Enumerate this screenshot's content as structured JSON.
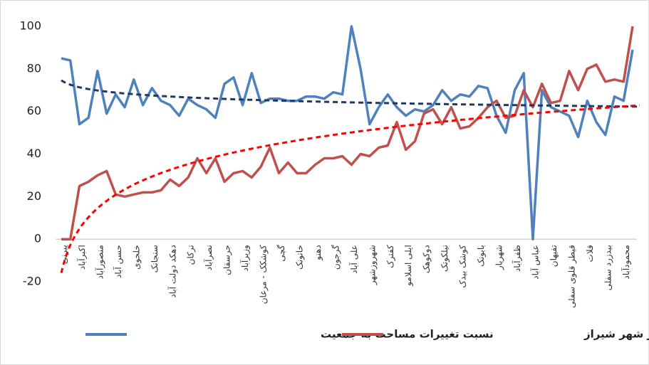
{
  "chart_data": {
    "type": "line",
    "categories": [
      "پیرنی",
      null,
      "اکبرآباد",
      null,
      "منصورآباد",
      null,
      "حسن آباد",
      null,
      "خلجوی",
      null,
      "سنجانک",
      null,
      "دهکد دولت آباد",
      null,
      "ترکان",
      null,
      "نصرآباد",
      null,
      "جرسقان",
      null,
      "وزیرآباد",
      null,
      "کوشکک - مرغان",
      null,
      "گچی",
      null,
      "خاتونک",
      null,
      "دهنو",
      null,
      "گرجون",
      null,
      "علی آباد",
      null,
      "شهروزشهر",
      null,
      "کفترک",
      null,
      "ایلی اسلامو",
      null,
      "دوکوهک",
      null,
      "نیلکوتک",
      null,
      "کوشک بیدک",
      null,
      "بابونک",
      null,
      "شهریار",
      null,
      "ظفرآباد",
      null,
      "عباس آباد",
      null,
      "تفیهان",
      null,
      "قیطر قلوی سفلی",
      null,
      "قلات",
      null,
      "بیدزرد سفلی",
      null,
      "محمودآباد",
      null
    ],
    "series": [
      {
        "name": "نسبت تغییرات مساحت به جمعیت",
        "color": "#4f81bd",
        "trend_color": "#1f3864",
        "values": [
          85,
          84,
          54,
          57,
          79,
          59,
          68,
          62,
          75,
          63,
          71,
          65,
          63,
          58,
          66,
          63,
          61,
          57,
          73,
          76,
          63,
          78,
          64,
          66,
          66,
          65,
          65,
          67,
          67,
          66,
          69,
          68,
          100,
          80,
          54,
          62,
          68,
          62,
          58,
          61,
          60,
          63,
          70,
          65,
          68,
          67,
          72,
          71,
          58,
          50,
          70,
          78,
          0,
          70,
          62,
          60,
          58,
          48,
          65,
          55,
          49,
          67,
          65,
          89
        ]
      },
      {
        "name": "فاصله سکونت‌گاه از مرکز شهر شیراز",
        "color": "#c0504d",
        "trend_color": "#ff0000",
        "values": [
          0,
          0,
          25,
          27,
          30,
          32,
          21,
          20,
          21,
          22,
          22,
          23,
          28,
          25,
          29,
          38,
          31,
          38,
          27,
          31,
          32,
          29,
          34,
          43,
          31,
          36,
          31,
          31,
          35,
          38,
          38,
          39,
          35,
          40,
          39,
          43,
          44,
          55,
          42,
          46,
          59,
          61,
          54,
          62,
          52,
          53,
          57,
          62,
          65,
          57,
          58,
          70,
          62,
          73,
          64,
          65,
          79,
          70,
          80,
          82,
          74,
          75,
          74,
          100
        ]
      }
    ],
    "trendline": "log",
    "ylim": [
      -20,
      100
    ],
    "yticks": [
      -20,
      0,
      20,
      40,
      60,
      80,
      100
    ]
  }
}
